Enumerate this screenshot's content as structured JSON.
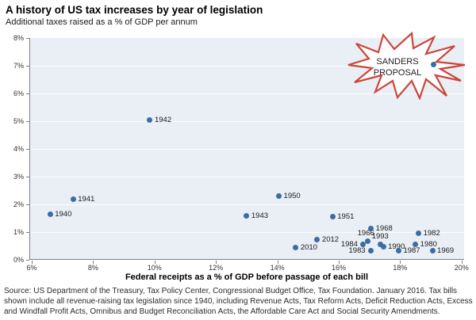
{
  "title": "A history of US tax increases by year of legislation",
  "subtitle": "Additional taxes raised as a % of GDP per annum",
  "source": "Source: US Department of the Treasury, Tax Policy Center, Congressional Budget Office, Tax Foundation. January 2016.  Tax bills shown include all revenue-raising tax legislation since 1940, including Revenue Acts, Tax Reform Acts, Deficit Reduction Acts, Excess and Windfall Profit Acts, Omnibus and Budget Reconciliation Acts, the Affordable Care Act and Social Security Amendments.",
  "starburst": {
    "line1": "SANDERS",
    "line2": "PROPOSAL",
    "color": "#cc4639"
  },
  "chart_data": {
    "type": "scatter",
    "title": "A history of US tax increases by year of legislation",
    "xlabel": "Federal receipts as a % of GDP before passage of each bill",
    "ylabel": "Additional taxes raised as a % of GDP per annum",
    "xlim": [
      6,
      20
    ],
    "ylim": [
      0,
      8
    ],
    "x_tick_values": [
      6,
      8,
      10,
      12,
      14,
      16,
      18,
      20
    ],
    "x_tick_labels": [
      "6%",
      "8%",
      "10%",
      "12%",
      "14%",
      "16%",
      "18%",
      "20%"
    ],
    "y_tick_values": [
      0,
      1,
      2,
      3,
      4,
      5,
      6,
      7,
      8
    ],
    "y_tick_labels": [
      "0%",
      "1%",
      "2%",
      "3%",
      "4%",
      "5%",
      "6%",
      "7%",
      "8%"
    ],
    "grid": "horizontal",
    "legend": "none",
    "point_color": "#3a6da4",
    "plot_bg": "#e9eff5",
    "points": [
      {
        "label": "1940",
        "x": 6.6,
        "y": 1.65,
        "pos": "right"
      },
      {
        "label": "1941",
        "x": 7.35,
        "y": 2.2,
        "pos": "right"
      },
      {
        "label": "1942",
        "x": 9.85,
        "y": 5.05,
        "pos": "right"
      },
      {
        "label": "1943",
        "x": 13.0,
        "y": 1.6,
        "pos": "right"
      },
      {
        "label": "1950",
        "x": 14.05,
        "y": 2.3,
        "pos": "right"
      },
      {
        "label": "1951",
        "x": 15.8,
        "y": 1.55,
        "pos": "right"
      },
      {
        "label": "2010",
        "x": 14.6,
        "y": 0.43,
        "pos": "right"
      },
      {
        "label": "2012",
        "x": 15.3,
        "y": 0.74,
        "pos": "right"
      },
      {
        "label": "1966",
        "x": 16.95,
        "y": 0.68,
        "pos": "above-left"
      },
      {
        "label": "1968",
        "x": 17.05,
        "y": 1.14,
        "pos": "right"
      },
      {
        "label": "1984",
        "x": 16.8,
        "y": 0.57,
        "pos": "left"
      },
      {
        "label": "1983",
        "x": 17.05,
        "y": 0.33,
        "pos": "left"
      },
      {
        "label": "1993",
        "x": 17.35,
        "y": 0.57,
        "pos": "above"
      },
      {
        "label": "1990",
        "x": 17.45,
        "y": 0.48,
        "pos": "right"
      },
      {
        "label": "1987",
        "x": 17.95,
        "y": 0.33,
        "pos": "right"
      },
      {
        "label": "1980",
        "x": 18.5,
        "y": 0.57,
        "pos": "right"
      },
      {
        "label": "1982",
        "x": 18.6,
        "y": 0.95,
        "pos": "right"
      },
      {
        "label": "1969",
        "x": 19.05,
        "y": 0.34,
        "pos": "right"
      },
      {
        "label": "SANDERS PROPOSAL",
        "x": 19.1,
        "y": 7.05,
        "pos": "none"
      }
    ]
  }
}
